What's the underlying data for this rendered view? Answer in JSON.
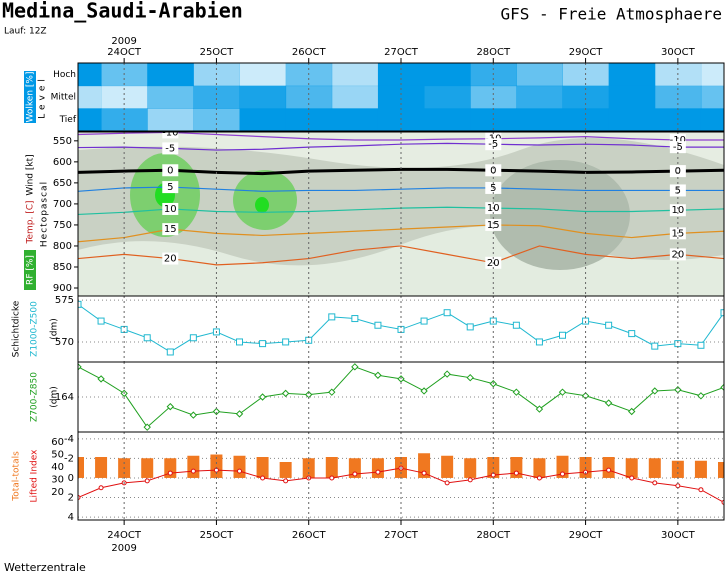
{
  "title": "Medina_Saudi-Arabien",
  "run": "Lauf: 12Z",
  "model": "GFS - Freie Atmosphaere",
  "year": "2009",
  "footer": "Wetterzentrale",
  "chart_data": [
    {
      "type": "cloud",
      "ylabel": "Wolken [%]",
      "level_label": "Level",
      "xlim": [
        23.5,
        30.5
      ],
      "xticks": [
        {
          "value": 24,
          "label": "24OCT"
        },
        {
          "value": 25,
          "label": "25OCT"
        },
        {
          "value": 26,
          "label": "26OCT"
        },
        {
          "value": 27,
          "label": "27OCT"
        },
        {
          "value": 28,
          "label": "28OCT"
        },
        {
          "value": 29,
          "label": "29OCT"
        },
        {
          "value": 30,
          "label": "30OCT"
        }
      ],
      "x": [
        23.5,
        24,
        24.5,
        25,
        25.5,
        26,
        26.5,
        27,
        27.5,
        28,
        28.5,
        29,
        29.5,
        30,
        30.5
      ],
      "series": [
        {
          "name": "Hoch",
          "color": "#0099e6",
          "values": [
            100,
            60,
            100,
            40,
            20,
            60,
            30,
            100,
            100,
            80,
            60,
            40,
            100,
            30,
            20
          ]
        },
        {
          "name": "Mittel",
          "color": "#0099e6",
          "values": [
            30,
            20,
            60,
            80,
            90,
            70,
            40,
            100,
            90,
            60,
            80,
            90,
            100,
            70,
            60
          ]
        },
        {
          "name": "Tief",
          "color": "#0099e6",
          "values": [
            100,
            80,
            40,
            60,
            100,
            100,
            100,
            100,
            100,
            100,
            100,
            100,
            100,
            100,
            100
          ]
        }
      ]
    },
    {
      "type": "contour",
      "ylabel": "Hectopascal",
      "labels": [
        "Wind [kt]",
        "Temp. [C]",
        "RF [%]"
      ],
      "xlim": [
        23.5,
        30.5
      ],
      "xticks": [
        {
          "value": 24,
          "label": "24OCT"
        },
        {
          "value": 25,
          "label": "25OCT"
        },
        {
          "value": 26,
          "label": "26OCT"
        },
        {
          "value": 27,
          "label": "27OCT"
        },
        {
          "value": 28,
          "label": "28OCT"
        },
        {
          "value": 29,
          "label": "29OCT"
        },
        {
          "value": 30,
          "label": "30OCT"
        }
      ],
      "ylim": [
        919,
        529
      ],
      "yticks": [
        550,
        600,
        650,
        700,
        750,
        800,
        850,
        900
      ],
      "x": [
        23.5,
        24,
        24.5,
        25,
        25.5,
        26,
        26.5,
        27,
        27.5,
        28,
        28.5,
        29,
        29.5,
        30,
        30.5
      ],
      "series": [
        {
          "name": "-10",
          "color": "#9040d0",
          "values": [
            535,
            532,
            530,
            535,
            540,
            545,
            548,
            548,
            546,
            545,
            543,
            540,
            545,
            548,
            548
          ]
        },
        {
          "name": "-5",
          "color": "#7030d0",
          "values": [
            566,
            565,
            568,
            572,
            570,
            565,
            562,
            558,
            556,
            558,
            560,
            558,
            560,
            565,
            565
          ]
        },
        {
          "name": "0",
          "color": "#000000",
          "values": [
            625,
            622,
            620,
            625,
            628,
            622,
            620,
            618,
            618,
            620,
            622,
            625,
            624,
            622,
            620
          ]
        },
        {
          "name": "5",
          "color": "#2080e0",
          "values": [
            670,
            662,
            660,
            665,
            670,
            668,
            668,
            665,
            662,
            662,
            665,
            668,
            668,
            668,
            668
          ]
        },
        {
          "name": "10",
          "color": "#20c0a0",
          "values": [
            725,
            720,
            712,
            718,
            720,
            718,
            714,
            710,
            708,
            710,
            712,
            718,
            718,
            715,
            712
          ]
        },
        {
          "name": "15",
          "color": "#e09020",
          "values": [
            790,
            780,
            760,
            770,
            775,
            770,
            765,
            760,
            755,
            750,
            752,
            770,
            780,
            770,
            765
          ]
        },
        {
          "name": "20",
          "color": "#e06020",
          "values": [
            830,
            820,
            830,
            845,
            840,
            830,
            810,
            800,
            820,
            840,
            800,
            820,
            830,
            820,
            830
          ]
        }
      ]
    },
    {
      "type": "line",
      "group_label": "Schichtdicke",
      "unit": "(dm)",
      "xlim": [
        23.5,
        30.5
      ],
      "xticks": [
        {
          "value": 24,
          "label": "24OCT"
        },
        {
          "value": 25,
          "label": "25OCT"
        },
        {
          "value": 26,
          "label": "26OCT"
        },
        {
          "value": 27,
          "label": "27OCT"
        },
        {
          "value": 28,
          "label": "28OCT"
        },
        {
          "value": 29,
          "label": "29OCT"
        },
        {
          "value": 30,
          "label": "30OCT"
        }
      ],
      "ylim": [
        567.6,
        575.5
      ],
      "yticks": [
        570,
        575
      ],
      "x": [
        23.5,
        23.75,
        24,
        24.25,
        24.5,
        24.75,
        25,
        25.25,
        25.5,
        25.75,
        26,
        26.25,
        26.5,
        26.75,
        27,
        27.25,
        27.5,
        27.75,
        28,
        28.25,
        28.5,
        28.75,
        29,
        29.25,
        29.5,
        29.75,
        30,
        30.25,
        30.5
      ],
      "series": [
        {
          "name": "Z1000-Z500",
          "color": "#20b8d0",
          "marker": "square",
          "values": [
            574.5,
            572.5,
            571.5,
            570.5,
            568.8,
            570.5,
            571.2,
            570,
            569.8,
            570,
            570.2,
            573,
            572.8,
            572,
            571.5,
            572.5,
            573.5,
            571.8,
            572.5,
            572,
            570,
            570.8,
            572.5,
            572,
            571,
            569.5,
            569.8,
            569.6,
            573.5
          ]
        }
      ]
    },
    {
      "type": "line",
      "unit": "(dm)",
      "xlim": [
        23.5,
        30.5
      ],
      "xticks": [
        {
          "value": 24,
          "label": "24OCT"
        },
        {
          "value": 25,
          "label": "25OCT"
        },
        {
          "value": 26,
          "label": "26OCT"
        },
        {
          "value": 27,
          "label": "27OCT"
        },
        {
          "value": 28,
          "label": "28OCT"
        },
        {
          "value": 29,
          "label": "29OCT"
        },
        {
          "value": 30,
          "label": "30OCT"
        }
      ],
      "ylim": [
        161.1,
        166.9
      ],
      "yticks": [
        164
      ],
      "x": [
        23.5,
        23.75,
        24,
        24.25,
        24.5,
        24.75,
        25,
        25.25,
        25.5,
        25.75,
        26,
        26.25,
        26.5,
        26.75,
        27,
        27.25,
        27.5,
        27.75,
        28,
        28.25,
        28.5,
        28.75,
        29,
        29.25,
        29.5,
        29.75,
        30,
        30.25,
        30.5
      ],
      "series": [
        {
          "name": "Z700-Z850",
          "color": "#20a020",
          "marker": "diamond",
          "values": [
            166.5,
            165.5,
            164.3,
            161.5,
            163.2,
            162.5,
            162.8,
            162.6,
            164,
            164.3,
            164.2,
            164.4,
            166.5,
            165.8,
            165.5,
            164.5,
            165.9,
            165.6,
            165.1,
            164.4,
            163,
            164.4,
            164.1,
            163.5,
            162.8,
            164.5,
            164.6,
            164.1,
            164.8
          ]
        }
      ]
    },
    {
      "type": "index",
      "xlim": [
        23.5,
        30.5
      ],
      "xticks": [
        {
          "value": 24,
          "label": "24OCT"
        },
        {
          "value": 25,
          "label": "25OCT"
        },
        {
          "value": 26,
          "label": "26OCT"
        },
        {
          "value": 27,
          "label": "27OCT"
        },
        {
          "value": 28,
          "label": "28OCT"
        },
        {
          "value": 29,
          "label": "29OCT"
        },
        {
          "value": 30,
          "label": "30OCT"
        }
      ],
      "ylim": [
        4.3,
        -4.7
      ],
      "yticks": [
        -4,
        -2,
        0,
        2,
        4
      ],
      "y2lim": [
        -2.4,
        68
      ],
      "y2ticks": [
        60,
        50,
        40,
        30,
        20
      ],
      "x": [
        23.5,
        23.75,
        24,
        24.25,
        24.5,
        24.75,
        25,
        25.25,
        25.5,
        25.75,
        26,
        26.25,
        26.5,
        26.75,
        27,
        27.25,
        27.5,
        27.75,
        28,
        28.25,
        28.5,
        28.75,
        29,
        29.25,
        29.5,
        29.75,
        30,
        30.25,
        30.5
      ],
      "series": [
        {
          "name": "Total-totals",
          "color": "#f07820",
          "axis": "y2",
          "values": [
            48,
            48,
            47,
            47,
            47,
            49,
            50,
            49,
            48,
            44,
            47,
            48,
            47,
            47,
            48,
            51,
            49,
            47,
            48,
            48,
            47,
            49,
            48,
            48,
            47,
            47,
            45,
            45,
            44
          ]
        },
        {
          "name": "Lifted Index",
          "color": "#e01010",
          "marker": "circle",
          "values": [
            2,
            1,
            0.5,
            0.3,
            -0.5,
            -0.7,
            -0.8,
            -0.7,
            0,
            0.3,
            0,
            0,
            -0.4,
            -0.6,
            -1,
            -0.5,
            0.5,
            0.2,
            -0.3,
            -0.5,
            0,
            -0.4,
            -0.6,
            -0.8,
            0,
            0.5,
            0.8,
            1.2,
            2.5
          ]
        }
      ]
    }
  ]
}
